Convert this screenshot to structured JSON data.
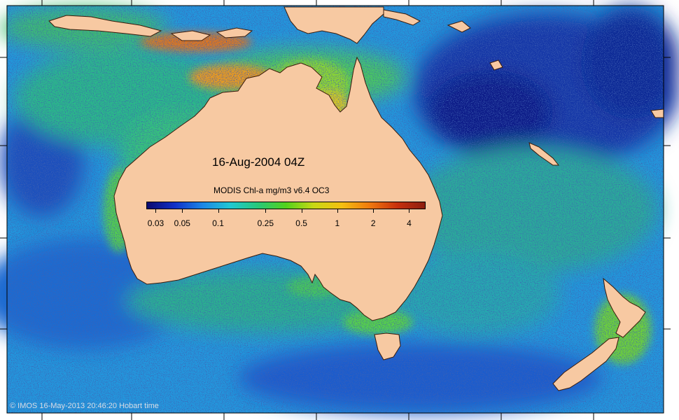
{
  "map": {
    "date_label": "16-Aug-2004 04Z",
    "colorbar_title": "MODIS Chl-a mg/m3 v6.4 OC3",
    "credit": "© IMOS 16-May-2013 20:46:20 Hobart time"
  },
  "colorbar": {
    "ticks": [
      {
        "label": "0.03",
        "value": 0.03
      },
      {
        "label": "0.05",
        "value": 0.05
      },
      {
        "label": "0.1",
        "value": 0.1
      },
      {
        "label": "0.25",
        "value": 0.25
      },
      {
        "label": "0.5",
        "value": 0.5
      },
      {
        "label": "1",
        "value": 1
      },
      {
        "label": "2",
        "value": 2
      },
      {
        "label": "4",
        "value": 4
      }
    ],
    "colors": [
      "#0a0a6e",
      "#1030c8",
      "#1c86e6",
      "#20c8d2",
      "#28c878",
      "#52d21c",
      "#c8d814",
      "#f4c010",
      "#f07a0e",
      "#c8300c",
      "#8c1e10"
    ]
  },
  "legend_colors": {
    "land": "#f7c9a2",
    "deep_ocean": "#1a3cb4",
    "mid_ocean": "#1f8fde",
    "coastal": "#39c27a",
    "high_chl": "#e8821a"
  }
}
